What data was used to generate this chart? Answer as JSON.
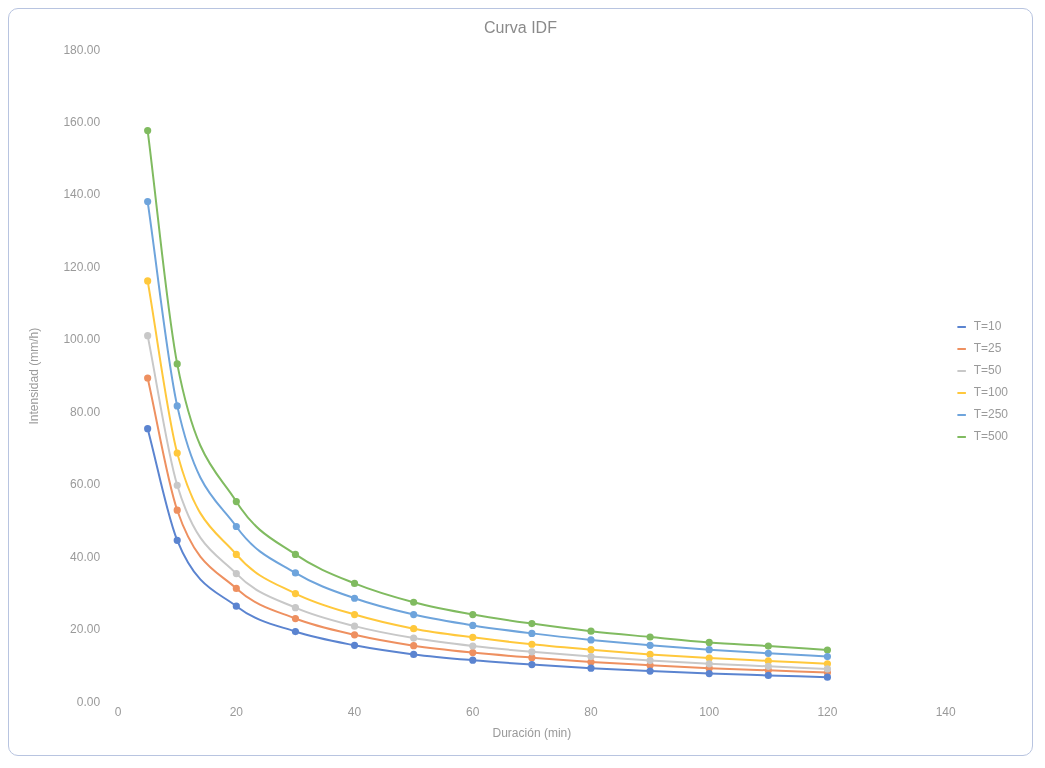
{
  "chart_data": {
    "type": "line",
    "title": "Curva IDF",
    "xlabel": "Duración (min)",
    "ylabel": "Intensidad (mm/h)",
    "x": [
      5,
      10,
      20,
      30,
      40,
      50,
      60,
      70,
      80,
      90,
      100,
      110,
      120
    ],
    "series": [
      {
        "name": "T=10",
        "color": "#5b84d0",
        "values": [
          75.5,
          44.7,
          26.5,
          19.5,
          15.7,
          13.2,
          11.6,
          10.4,
          9.4,
          8.6,
          7.9,
          7.4,
          6.9
        ]
      },
      {
        "name": "T=25",
        "color": "#ee9060",
        "values": [
          89.5,
          53.0,
          31.4,
          23.1,
          18.6,
          15.6,
          13.7,
          12.3,
          11.1,
          10.2,
          9.4,
          8.8,
          8.2
        ]
      },
      {
        "name": "T=50",
        "color": "#c8c8c8",
        "values": [
          101.2,
          59.9,
          35.5,
          26.1,
          21.0,
          17.7,
          15.5,
          13.9,
          12.6,
          11.5,
          10.6,
          9.9,
          9.2
        ]
      },
      {
        "name": "T=100",
        "color": "#ffc83c",
        "values": [
          116.3,
          68.8,
          40.8,
          30.0,
          24.2,
          20.3,
          17.9,
          16.0,
          14.5,
          13.2,
          12.2,
          11.4,
          10.6
        ]
      },
      {
        "name": "T=250",
        "color": "#6ea4dc",
        "values": [
          138.2,
          81.8,
          48.5,
          35.7,
          28.7,
          24.2,
          21.2,
          19.0,
          17.2,
          15.7,
          14.5,
          13.5,
          12.6
        ]
      },
      {
        "name": "T=500",
        "color": "#80bb60",
        "values": [
          157.8,
          93.4,
          55.4,
          40.8,
          32.8,
          27.6,
          24.2,
          21.7,
          19.6,
          18.0,
          16.5,
          15.5,
          14.4
        ]
      }
    ],
    "xlim": [
      0,
      140
    ],
    "xticks": [
      0,
      20,
      40,
      60,
      80,
      100,
      120,
      140
    ],
    "ylim": [
      0,
      180
    ],
    "yticks": [
      {
        "value": 0,
        "label": "0.00"
      },
      {
        "value": 20,
        "label": "20.00"
      },
      {
        "value": 40,
        "label": "40.00"
      },
      {
        "value": 60,
        "label": "60.00"
      },
      {
        "value": 80,
        "label": "80.00"
      },
      {
        "value": 100,
        "label": "100.00"
      },
      {
        "value": 120,
        "label": "120.00"
      },
      {
        "value": 140,
        "label": "140.00"
      },
      {
        "value": 160,
        "label": "160.00"
      },
      {
        "value": 180,
        "label": "180.00"
      }
    ],
    "grid": false,
    "legend": "right",
    "marker": "circle",
    "line_style": "solid"
  }
}
